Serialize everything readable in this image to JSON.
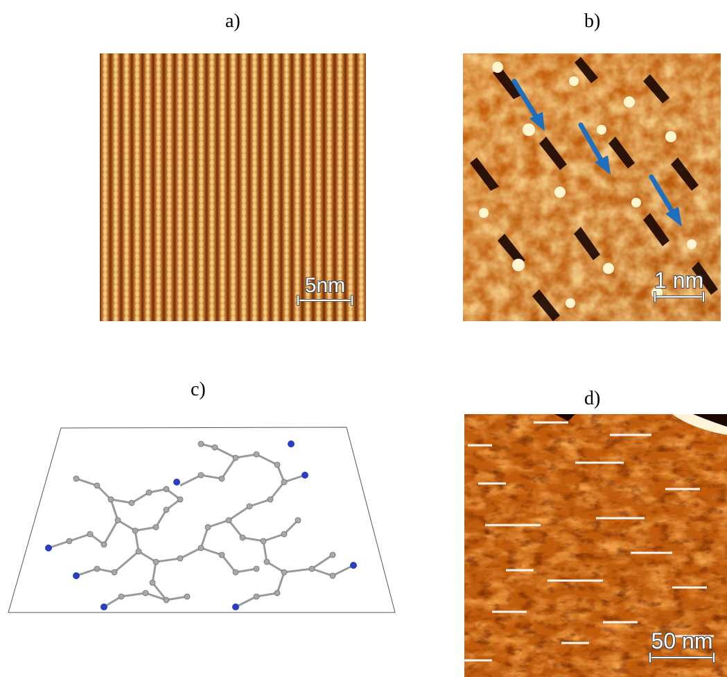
{
  "panels": {
    "a": {
      "label": "a)",
      "scale_text": "5nm"
    },
    "b": {
      "label": "b)",
      "scale_text": "1 nm"
    },
    "c": {
      "label": "c)"
    },
    "d": {
      "label": "d)",
      "scale_text": "50 nm"
    }
  },
  "colors": {
    "stm_dark": "#3a0f00",
    "stm_mid": "#d0700f",
    "stm_bright": "#fff2c8",
    "arrow": "#1f6fbf",
    "carbon_atom": "#a8a8a8",
    "nitrogen_atom": "#2a3fbf"
  }
}
